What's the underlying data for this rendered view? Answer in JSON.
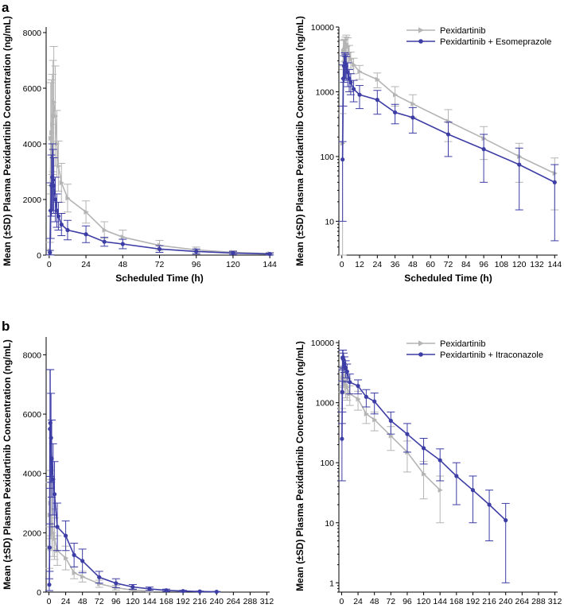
{
  "panel_labels": [
    "a",
    "b"
  ],
  "colors": {
    "reference": "#b4b4b4",
    "combo": "#3d3da6"
  },
  "chart_data": [
    {
      "id": "a-linear",
      "type": "line",
      "scale": "linear",
      "title": "",
      "xlabel": "Scheduled Time (h)",
      "ylabel": "Mean (±SD) Plasma Pexidartinib Concentration (ng/mL)",
      "xlim": [
        -2,
        146
      ],
      "ylim": [
        0,
        8200
      ],
      "xticks": [
        0,
        24,
        48,
        72,
        96,
        120,
        144
      ],
      "yticks": [
        0,
        2000,
        4000,
        6000,
        8000
      ],
      "grid": false,
      "legend": null,
      "series": [
        {
          "name": "Pexidartinib",
          "color": "reference",
          "marker": "triangle",
          "x": [
            0.5,
            1,
            1.5,
            2,
            2.5,
            3,
            4,
            5,
            6,
            8,
            12,
            24,
            36,
            48,
            72,
            96,
            120,
            144
          ],
          "y": [
            160,
            4200,
            4400,
            4700,
            5000,
            5500,
            5000,
            4000,
            3200,
            2600,
            2050,
            1550,
            900,
            650,
            350,
            190,
            100,
            55
          ],
          "sd": [
            300,
            2000,
            1900,
            1800,
            2000,
            2000,
            1800,
            1200,
            900,
            700,
            500,
            400,
            300,
            250,
            180,
            100,
            60,
            40
          ]
        },
        {
          "name": "Pexidartinib + Esomeprazole",
          "color": "combo",
          "marker": "circle",
          "x": [
            0.5,
            1,
            1.5,
            2,
            2.5,
            3,
            4,
            5,
            6,
            8,
            12,
            24,
            36,
            48,
            72,
            96,
            120,
            144
          ],
          "y": [
            90,
            1600,
            2500,
            2800,
            2700,
            2500,
            2000,
            1600,
            1400,
            1100,
            900,
            750,
            480,
            400,
            220,
            130,
            75,
            40
          ],
          "sd": [
            80,
            1000,
            1100,
            1200,
            1100,
            1000,
            800,
            600,
            500,
            400,
            350,
            300,
            160,
            170,
            120,
            90,
            60,
            35
          ]
        }
      ]
    },
    {
      "id": "a-log",
      "type": "line",
      "scale": "log",
      "title": "",
      "xlabel": "Scheduled Time (h)",
      "ylabel": "Mean (±SD) Plasma Pexidartinib Concentration (ng/mL)",
      "xlim": [
        -2,
        146
      ],
      "ylim": [
        3,
        10000
      ],
      "xticks": [
        0,
        12,
        24,
        36,
        48,
        60,
        72,
        84,
        96,
        108,
        120,
        132,
        144
      ],
      "yticks": [
        10,
        100,
        1000,
        10000
      ],
      "grid": false,
      "legend": "top-right",
      "legend_entries": [
        "Pexidartinib",
        "Pexidartinib + Esomeprazole"
      ],
      "series": [
        {
          "name": "Pexidartinib",
          "color": "reference",
          "marker": "triangle",
          "x": [
            0.5,
            1,
            1.5,
            2,
            2.5,
            3,
            4,
            5,
            6,
            8,
            12,
            24,
            36,
            48,
            72,
            96,
            120,
            144
          ],
          "y": [
            160,
            4200,
            4400,
            4700,
            5000,
            5500,
            5000,
            4000,
            3200,
            2600,
            2050,
            1550,
            900,
            650,
            350,
            190,
            100,
            55
          ],
          "sd": [
            300,
            2000,
            1900,
            1800,
            2000,
            2000,
            1800,
            1200,
            900,
            700,
            500,
            400,
            300,
            250,
            180,
            100,
            60,
            40
          ]
        },
        {
          "name": "Pexidartinib + Esomeprazole",
          "color": "combo",
          "marker": "circle",
          "x": [
            0.5,
            1,
            1.5,
            2,
            2.5,
            3,
            4,
            5,
            6,
            8,
            12,
            24,
            36,
            48,
            72,
            96,
            120,
            144
          ],
          "y": [
            90,
            1600,
            2500,
            2800,
            2700,
            2500,
            2000,
            1600,
            1400,
            1100,
            900,
            750,
            480,
            400,
            220,
            130,
            75,
            40
          ],
          "sd": [
            80,
            1000,
            1100,
            1200,
            1100,
            1000,
            800,
            600,
            500,
            400,
            350,
            300,
            160,
            170,
            120,
            90,
            60,
            35
          ]
        }
      ]
    },
    {
      "id": "b-linear",
      "type": "line",
      "scale": "linear",
      "title": "",
      "xlabel": "Scheduled Time (h)",
      "ylabel": "Mean (±SD) Plasma Pexidartinib Concentration (ng/mL)",
      "xlim": [
        -4,
        316
      ],
      "ylim": [
        0,
        8600
      ],
      "xticks": [
        0,
        24,
        48,
        72,
        96,
        120,
        144,
        168,
        192,
        216,
        240,
        264,
        288,
        312
      ],
      "yticks": [
        0,
        2000,
        4000,
        6000,
        8000
      ],
      "grid": false,
      "legend": null,
      "series": [
        {
          "name": "Pexidartinib",
          "color": "reference",
          "marker": "triangle",
          "x": [
            0.5,
            1,
            2,
            3,
            4,
            6,
            8,
            12,
            24,
            36,
            48,
            72,
            96,
            120,
            144
          ],
          "y": [
            1500,
            2600,
            3000,
            2800,
            2300,
            2000,
            1800,
            1400,
            1150,
            650,
            520,
            280,
            150,
            65,
            35
          ],
          "sd": [
            700,
            1100,
            1100,
            1000,
            900,
            800,
            700,
            500,
            400,
            200,
            180,
            120,
            80,
            40,
            25
          ]
        },
        {
          "name": "Pexidartinib + Itraconazole",
          "color": "combo",
          "marker": "circle",
          "x": [
            0.5,
            1,
            1.5,
            2,
            3,
            4,
            6,
            8,
            12,
            24,
            36,
            48,
            72,
            96,
            120,
            144,
            168,
            192,
            216,
            240
          ],
          "y": [
            250,
            1500,
            5500,
            5700,
            5200,
            4500,
            3800,
            3300,
            2200,
            1900,
            1250,
            1050,
            500,
            300,
            175,
            110,
            60,
            35,
            20,
            11
          ],
          "sd": [
            200,
            800,
            2000,
            1800,
            1500,
            1300,
            1200,
            1100,
            800,
            500,
            400,
            400,
            200,
            150,
            80,
            60,
            40,
            25,
            15,
            10
          ]
        }
      ]
    },
    {
      "id": "b-log",
      "type": "line",
      "scale": "log",
      "title": "",
      "xlabel": "Scheduled Time (h)",
      "ylabel": "Mean (±SD) Plasma Pexidartinib Concentration (ng/mL)",
      "xlim": [
        -4,
        316
      ],
      "ylim": [
        0.7,
        11000
      ],
      "xticks": [
        0,
        24,
        48,
        72,
        96,
        120,
        144,
        168,
        192,
        216,
        240,
        264,
        288,
        312
      ],
      "yticks": [
        1,
        10,
        100,
        1000,
        10000
      ],
      "grid": false,
      "legend": "top-right",
      "legend_entries": [
        "Pexidartinib",
        "Pexidartinib + Itraconazole"
      ],
      "series": [
        {
          "name": "Pexidartinib",
          "color": "reference",
          "marker": "triangle",
          "x": [
            0.5,
            1,
            2,
            3,
            4,
            6,
            8,
            12,
            24,
            36,
            48,
            72,
            96,
            120,
            144
          ],
          "y": [
            1500,
            2600,
            3000,
            2800,
            2300,
            2000,
            1800,
            1400,
            1150,
            650,
            520,
            280,
            150,
            65,
            35
          ],
          "sd": [
            700,
            1100,
            1100,
            1000,
            900,
            800,
            700,
            500,
            400,
            200,
            180,
            120,
            80,
            40,
            25
          ]
        },
        {
          "name": "Pexidartinib + Itraconazole",
          "color": "combo",
          "marker": "circle",
          "x": [
            0.5,
            1,
            1.5,
            2,
            3,
            4,
            6,
            8,
            12,
            24,
            36,
            48,
            72,
            96,
            120,
            144,
            168,
            192,
            216,
            240
          ],
          "y": [
            250,
            1500,
            5500,
            5700,
            5200,
            4500,
            3800,
            3300,
            2200,
            1900,
            1250,
            1050,
            500,
            300,
            175,
            110,
            60,
            35,
            20,
            11
          ],
          "sd": [
            200,
            800,
            2000,
            1800,
            1500,
            1300,
            1200,
            1100,
            800,
            500,
            400,
            400,
            200,
            150,
            80,
            60,
            40,
            25,
            15,
            10
          ]
        }
      ]
    }
  ]
}
